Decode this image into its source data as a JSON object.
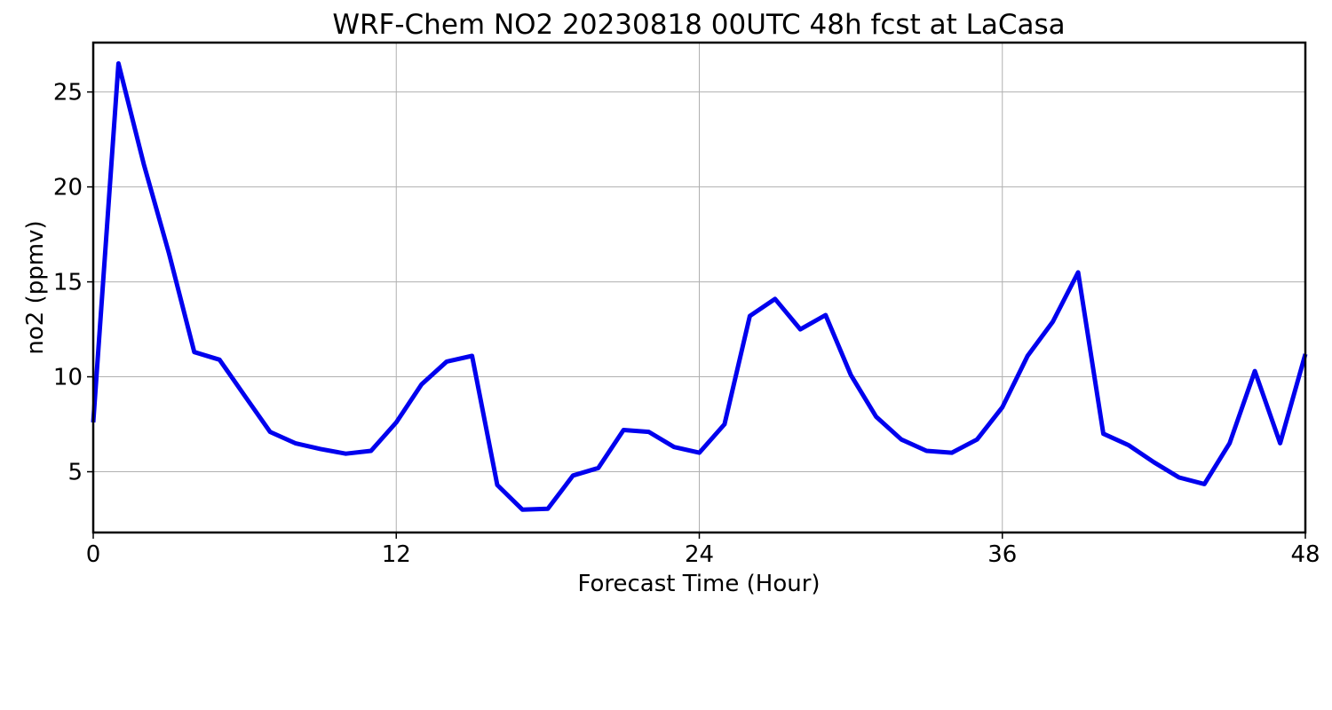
{
  "chart_data": {
    "type": "line",
    "title": "WRF-Chem NO2  20230818 00UTC 48h fcst at LaCasa",
    "xlabel": "Forecast Time (Hour)",
    "ylabel": "no2  (ppmv)",
    "xlim": [
      0,
      48
    ],
    "ylim": [
      1.8,
      27.6
    ],
    "xticks": [
      0,
      12,
      24,
      36,
      48
    ],
    "yticks": [
      5,
      10,
      15,
      20,
      25
    ],
    "grid": true,
    "line_color": "#0000ee",
    "series": [
      {
        "x": [
          0,
          1,
          2,
          3,
          4,
          5,
          6,
          7,
          8,
          9,
          10,
          11,
          12,
          13,
          14,
          15,
          16,
          17,
          18,
          19,
          20,
          21,
          22,
          23,
          24,
          25,
          26,
          27,
          28,
          29,
          30,
          31,
          32,
          33,
          34,
          35,
          36,
          37,
          38,
          39,
          40,
          41,
          42,
          43,
          44,
          45,
          46,
          47,
          48
        ],
        "values": [
          7.6,
          26.5,
          21.2,
          16.5,
          11.3,
          10.9,
          9.0,
          7.1,
          6.5,
          6.2,
          5.95,
          6.1,
          7.6,
          9.6,
          10.8,
          11.1,
          4.3,
          3.0,
          3.05,
          4.8,
          5.2,
          7.2,
          7.1,
          6.3,
          6.0,
          7.5,
          13.2,
          14.1,
          12.5,
          13.25,
          10.1,
          7.9,
          6.7,
          6.1,
          6.0,
          6.7,
          8.4,
          11.1,
          12.9,
          15.5,
          7.0,
          6.4,
          5.5,
          4.7,
          4.35,
          6.5,
          10.3,
          6.5,
          11.2
        ]
      }
    ]
  }
}
